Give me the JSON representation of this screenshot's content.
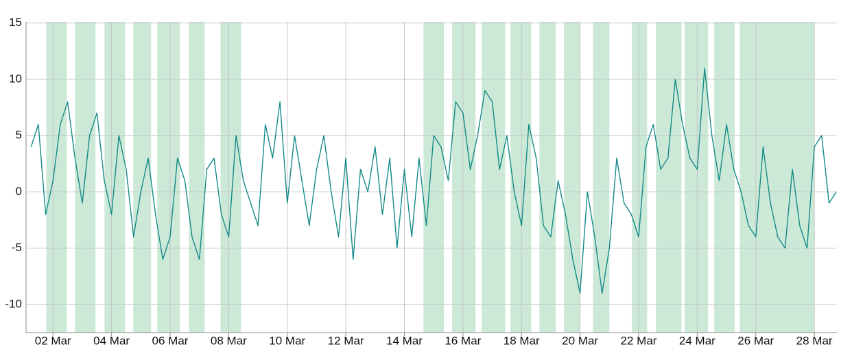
{
  "chart_data": {
    "type": "line",
    "x": [
      1.25,
      1.5,
      1.75,
      2,
      2.25,
      2.5,
      2.75,
      3,
      3.25,
      3.5,
      3.75,
      4,
      4.25,
      4.5,
      4.75,
      5,
      5.25,
      5.5,
      5.75,
      6,
      6.25,
      6.5,
      6.75,
      7,
      7.25,
      7.5,
      7.75,
      8,
      8.25,
      8.5,
      8.75,
      9,
      9.25,
      9.5,
      9.75,
      10,
      10.25,
      10.5,
      10.75,
      11,
      11.25,
      11.5,
      11.75,
      12,
      12.25,
      12.5,
      12.75,
      13,
      13.25,
      13.5,
      13.75,
      14,
      14.25,
      14.5,
      14.75,
      15,
      15.25,
      15.5,
      15.75,
      16,
      16.25,
      16.5,
      16.75,
      17,
      17.25,
      17.5,
      17.75,
      18,
      18.25,
      18.5,
      18.75,
      19,
      19.25,
      19.5,
      19.75,
      20,
      20.25,
      20.5,
      20.75,
      21,
      21.25,
      21.5,
      21.75,
      22,
      22.25,
      22.5,
      22.75,
      23,
      23.25,
      23.5,
      23.75,
      24,
      24.25,
      24.5,
      24.75,
      25,
      25.25,
      25.5,
      25.75,
      26,
      26.25,
      26.5,
      26.75,
      27,
      27.25,
      27.5,
      27.75,
      28,
      28.25,
      28.5,
      28.75
    ],
    "values": [
      4,
      6,
      -2,
      1,
      6,
      8,
      3,
      -1,
      5,
      7,
      1,
      -2,
      5,
      2,
      -4,
      0,
      3,
      -2,
      -6,
      -4,
      3,
      1,
      -4,
      -6,
      2,
      3,
      -2,
      -4,
      5,
      1,
      -1,
      -3,
      6,
      3,
      8,
      -1,
      5,
      1,
      -3,
      2,
      5,
      0,
      -4,
      3,
      -6,
      2,
      0,
      4,
      -2,
      3,
      -5,
      2,
      -4,
      3,
      -3,
      5,
      4,
      1,
      8,
      7,
      2,
      5,
      9,
      8,
      2,
      5,
      0,
      -3,
      6,
      3,
      -3,
      -4,
      1,
      -2,
      -6,
      -9,
      0,
      -4,
      -9,
      -5,
      3,
      -1,
      -2,
      -4,
      4,
      6,
      2,
      3,
      10,
      6,
      3,
      2,
      11,
      5,
      1,
      6,
      2,
      0,
      -3,
      -4,
      4,
      -1,
      -4,
      -5,
      2,
      -3,
      -5,
      4,
      5,
      -1,
      0
    ],
    "color": "#138a87",
    "shaded_ranges": [
      [
        1.77,
        2.47
      ],
      [
        2.75,
        3.45
      ],
      [
        3.76,
        4.46
      ],
      [
        4.74,
        5.35
      ],
      [
        5.56,
        6.33
      ],
      [
        6.64,
        7.18
      ],
      [
        7.72,
        8.42
      ],
      [
        14.65,
        15.35
      ],
      [
        15.63,
        16.43
      ],
      [
        16.64,
        17.44
      ],
      [
        17.62,
        18.33
      ],
      [
        18.61,
        19.17
      ],
      [
        19.45,
        19.99
      ],
      [
        20.44,
        21.0
      ],
      [
        21.77,
        22.29
      ],
      [
        22.59,
        23.46
      ],
      [
        23.57,
        24.37
      ],
      [
        24.58,
        25.28
      ],
      [
        25.45,
        28.0
      ]
    ],
    "shade_color": "#cce9d7",
    "xlim": [
      1.08,
      28.77
    ],
    "xticks": [
      {
        "value": 2,
        "label": "02 Mar"
      },
      {
        "value": 4,
        "label": "04 Mar"
      },
      {
        "value": 6,
        "label": "06 Mar"
      },
      {
        "value": 8,
        "label": "08 Mar"
      },
      {
        "value": 10,
        "label": "10 Mar"
      },
      {
        "value": 12,
        "label": "12 Mar"
      },
      {
        "value": 14,
        "label": "14 Mar"
      },
      {
        "value": 16,
        "label": "16 Mar"
      },
      {
        "value": 18,
        "label": "18 Mar"
      },
      {
        "value": 20,
        "label": "20 Mar"
      },
      {
        "value": 22,
        "label": "22 Mar"
      },
      {
        "value": 24,
        "label": "24 Mar"
      },
      {
        "value": 26,
        "label": "26 Mar"
      },
      {
        "value": 28,
        "label": "28 Mar"
      }
    ],
    "ylim": [
      -12.5,
      15.1
    ],
    "yticks": [
      -10,
      -5,
      0,
      5,
      10,
      15
    ],
    "grid": true
  }
}
